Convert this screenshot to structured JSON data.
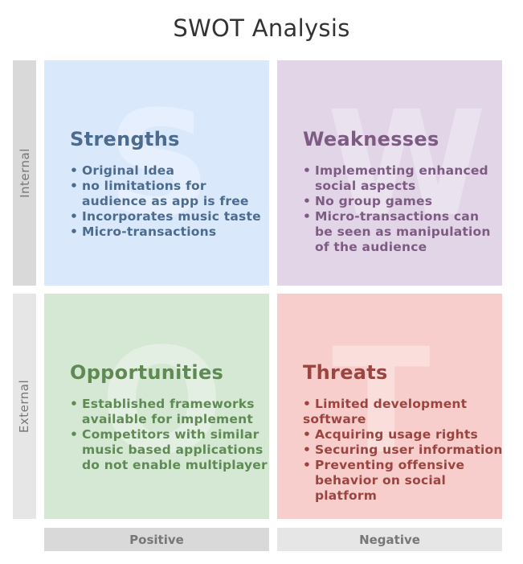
{
  "title": "SWOT Analysis",
  "row_labels": {
    "internal": "Internal",
    "external": "External"
  },
  "column_labels": {
    "positive": "Positive",
    "negative": "Negative"
  },
  "quadrants": {
    "strengths": {
      "letter": "S",
      "heading": "Strengths",
      "color": "#dae8fc",
      "text_color": "#4b6b8f",
      "items": [
        "Original Idea",
        "no limitations for",
        "audience as app is free",
        "Incorporates music taste",
        "Micro-transactions"
      ]
    },
    "weaknesses": {
      "letter": "W",
      "heading": "Weaknesses",
      "color": "#e1d5e7",
      "text_color": "#7d5b83",
      "items": [
        "Implementing enhanced",
        "social aspects",
        "No group games",
        "Micro-transactions can",
        "be seen as manipulation",
        "of the audience"
      ]
    },
    "opportunities": {
      "letter": "O",
      "heading": "Opportunities",
      "color": "#d5e8d4",
      "text_color": "#5f8a53",
      "items": [
        "Established frameworks",
        "available for implement",
        "Competitors with similar",
        "music based applications",
        "do not enable multiplayer"
      ]
    },
    "threats": {
      "letter": "T",
      "heading": "Threats",
      "color": "#f8cecc",
      "text_color": "#9c4540",
      "items": [
        "Limited development",
        "software",
        "Acquiring usage rights",
        "Securing user information",
        "Preventing offensive",
        "behavior on social",
        "platform"
      ]
    }
  },
  "bullet_glyph": "•"
}
